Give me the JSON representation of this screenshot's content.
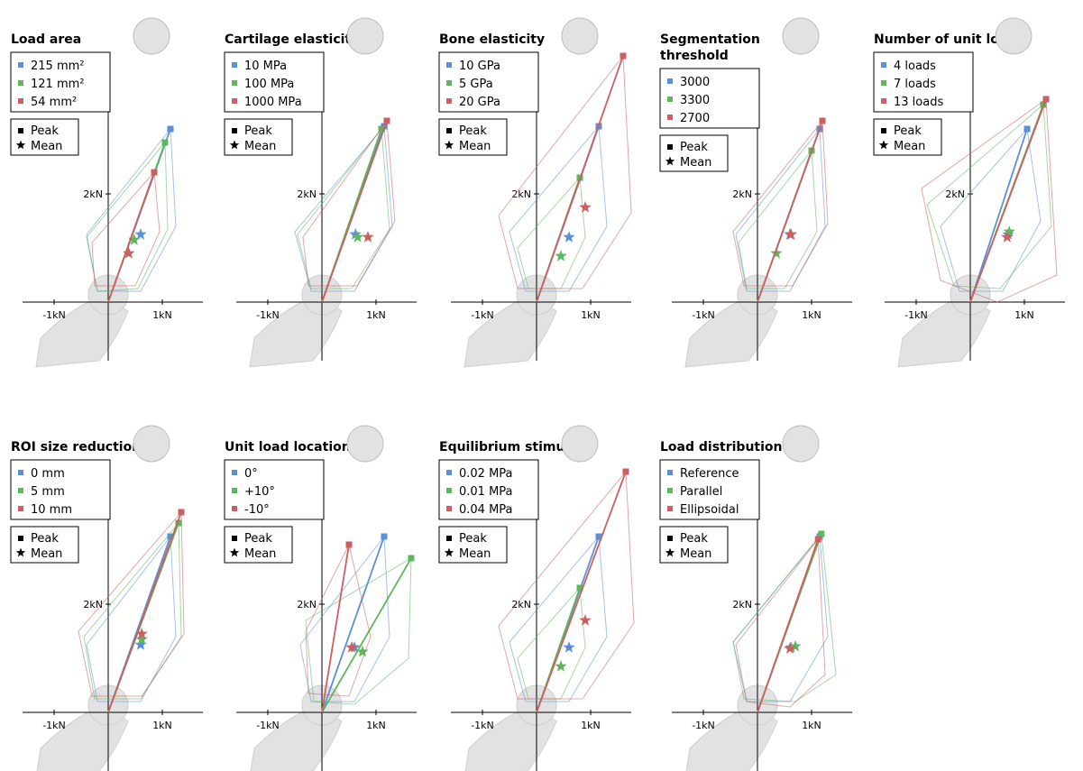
{
  "colors": {
    "blue": "#5b8fd9",
    "green": "#5cb85c",
    "red": "#cc5f5f",
    "bone": "#e2e2e2"
  },
  "tick_labels": {
    "x_neg": "-1kN",
    "x_pos": "1kN",
    "y": "2kN"
  },
  "marker_legend": {
    "peak": "Peak",
    "mean": "Mean"
  },
  "chart_data": [
    {
      "type": "scatter",
      "title": "Load area",
      "title_lines": [
        "Load area"
      ],
      "series": [
        {
          "name": "215 mm²",
          "color": "#5b8fd9",
          "peak": [
            1.15,
            3.2
          ],
          "mean": [
            0.6,
            1.25
          ],
          "envelope": [
            [
              1.15,
              3.2
            ],
            [
              1.25,
              1.4
            ],
            [
              0.6,
              0.2
            ],
            [
              -0.2,
              0.2
            ],
            [
              -0.4,
              1.25
            ]
          ]
        },
        {
          "name": "121 mm²",
          "color": "#5cb85c",
          "peak": [
            1.05,
            2.95
          ],
          "mean": [
            0.48,
            1.15
          ],
          "envelope": [
            [
              1.05,
              2.95
            ],
            [
              1.1,
              1.35
            ],
            [
              0.55,
              0.25
            ],
            [
              -0.2,
              0.2
            ],
            [
              -0.4,
              1.2
            ]
          ]
        },
        {
          "name": "54 mm²",
          "color": "#cc5f5f",
          "peak": [
            0.85,
            2.4
          ],
          "mean": [
            0.38,
            0.9
          ],
          "envelope": [
            [
              0.85,
              2.4
            ],
            [
              0.95,
              1.3
            ],
            [
              0.5,
              0.3
            ],
            [
              -0.25,
              0.3
            ],
            [
              -0.3,
              1.1
            ]
          ]
        }
      ]
    },
    {
      "type": "scatter",
      "title": "Cartilage elasticity",
      "title_lines": [
        "Cartilage elasticity"
      ],
      "series": [
        {
          "name": "10 MPa",
          "color": "#5b8fd9",
          "peak": [
            1.15,
            3.25
          ],
          "mean": [
            0.62,
            1.25
          ],
          "envelope": [
            [
              1.15,
              3.25
            ],
            [
              1.3,
              1.4
            ],
            [
              0.6,
              0.2
            ],
            [
              -0.2,
              0.2
            ],
            [
              -0.5,
              1.3
            ]
          ]
        },
        {
          "name": "100 MPa",
          "color": "#5cb85c",
          "peak": [
            1.1,
            3.2
          ],
          "mean": [
            0.66,
            1.2
          ],
          "envelope": [
            [
              1.1,
              3.2
            ],
            [
              1.25,
              1.35
            ],
            [
              0.55,
              0.25
            ],
            [
              -0.2,
              0.25
            ],
            [
              -0.45,
              1.25
            ]
          ]
        },
        {
          "name": "1000 MPa",
          "color": "#cc5f5f",
          "peak": [
            1.2,
            3.35
          ],
          "mean": [
            0.85,
            1.2
          ],
          "envelope": [
            [
              1.2,
              3.35
            ],
            [
              1.35,
              1.5
            ],
            [
              0.65,
              0.3
            ],
            [
              -0.25,
              0.3
            ],
            [
              -0.35,
              1.2
            ]
          ]
        }
      ]
    },
    {
      "type": "scatter",
      "title": "Bone elasticity",
      "title_lines": [
        "Bone elasticity"
      ],
      "series": [
        {
          "name": "10 GPa",
          "color": "#5b8fd9",
          "peak": [
            1.15,
            3.25
          ],
          "mean": [
            0.6,
            1.2
          ],
          "envelope": [
            [
              1.15,
              3.25
            ],
            [
              1.3,
              1.4
            ],
            [
              0.6,
              0.2
            ],
            [
              -0.2,
              0.2
            ],
            [
              -0.5,
              1.3
            ]
          ]
        },
        {
          "name": "5 GPa",
          "color": "#5cb85c",
          "peak": [
            0.8,
            2.3
          ],
          "mean": [
            0.45,
            0.85
          ],
          "envelope": [
            [
              0.8,
              2.3
            ],
            [
              0.9,
              1.2
            ],
            [
              0.45,
              0.25
            ],
            [
              -0.15,
              0.25
            ],
            [
              -0.35,
              1.0
            ]
          ]
        },
        {
          "name": "20 GPa",
          "color": "#cc5f5f",
          "peak": [
            1.6,
            4.55
          ],
          "mean": [
            0.9,
            1.75
          ],
          "envelope": [
            [
              1.6,
              4.55
            ],
            [
              1.75,
              1.65
            ],
            [
              0.85,
              0.25
            ],
            [
              -0.35,
              0.25
            ],
            [
              -0.7,
              1.6
            ]
          ]
        }
      ]
    },
    {
      "type": "scatter",
      "title": "Segmentation threshold",
      "title_lines": [
        "Segmentation",
        "threshold"
      ],
      "series": [
        {
          "name": "3000",
          "color": "#5b8fd9",
          "peak": [
            1.15,
            3.2
          ],
          "mean": [
            0.6,
            1.25
          ],
          "envelope": [
            [
              1.15,
              3.2
            ],
            [
              1.25,
              1.4
            ],
            [
              0.6,
              0.2
            ],
            [
              -0.2,
              0.2
            ],
            [
              -0.4,
              1.25
            ]
          ]
        },
        {
          "name": "3300",
          "color": "#5cb85c",
          "peak": [
            1.0,
            2.8
          ],
          "mean": [
            0.35,
            0.9
          ],
          "envelope": [
            [
              1.0,
              2.8
            ],
            [
              1.1,
              1.3
            ],
            [
              0.5,
              0.25
            ],
            [
              -0.2,
              0.25
            ],
            [
              -0.35,
              1.1
            ]
          ]
        },
        {
          "name": "2700",
          "color": "#cc5f5f",
          "peak": [
            1.2,
            3.35
          ],
          "mean": [
            0.62,
            1.25
          ],
          "envelope": [
            [
              1.2,
              3.35
            ],
            [
              1.3,
              1.45
            ],
            [
              0.65,
              0.3
            ],
            [
              -0.25,
              0.3
            ],
            [
              -0.45,
              1.3
            ]
          ]
        }
      ]
    },
    {
      "type": "scatter",
      "title": "Number of unit loads",
      "title_lines": [
        "Number of unit loads"
      ],
      "series": [
        {
          "name": "4 loads",
          "color": "#5b8fd9",
          "peak": [
            1.05,
            3.2
          ],
          "mean": [
            0.7,
            1.25
          ],
          "envelope": [
            [
              1.05,
              3.2
            ],
            [
              1.3,
              1.5
            ],
            [
              0.6,
              0.2
            ],
            [
              -0.2,
              0.2
            ],
            [
              -0.55,
              1.4
            ]
          ]
        },
        {
          "name": "7 loads",
          "color": "#5cb85c",
          "peak": [
            1.35,
            3.65
          ],
          "mean": [
            0.72,
            1.3
          ],
          "envelope": [
            [
              1.35,
              3.65
            ],
            [
              1.5,
              1.4
            ],
            [
              0.55,
              0.25
            ],
            [
              -0.3,
              0.3
            ],
            [
              -0.8,
              1.8
            ]
          ]
        },
        {
          "name": "13 loads",
          "color": "#cc5f5f",
          "peak": [
            1.4,
            3.75
          ],
          "mean": [
            0.68,
            1.2
          ],
          "envelope": [
            [
              1.4,
              3.75
            ],
            [
              1.6,
              0.5
            ],
            [
              0.5,
              0.0
            ],
            [
              -0.55,
              0.4
            ],
            [
              -0.9,
              2.1
            ]
          ]
        }
      ]
    },
    {
      "type": "scatter",
      "title": "ROI size reduction",
      "title_lines": [
        "ROI size reduction"
      ],
      "series": [
        {
          "name": "0 mm",
          "color": "#5b8fd9",
          "peak": [
            1.15,
            3.25
          ],
          "mean": [
            0.6,
            1.25
          ],
          "envelope": [
            [
              1.15,
              3.25
            ],
            [
              1.25,
              1.4
            ],
            [
              0.6,
              0.2
            ],
            [
              -0.2,
              0.2
            ],
            [
              -0.4,
              1.25
            ]
          ]
        },
        {
          "name": "5 mm",
          "color": "#5cb85c",
          "peak": [
            1.3,
            3.5
          ],
          "mean": [
            0.62,
            1.35
          ],
          "envelope": [
            [
              1.3,
              3.5
            ],
            [
              1.35,
              1.4
            ],
            [
              0.6,
              0.25
            ],
            [
              -0.25,
              0.25
            ],
            [
              -0.45,
              1.4
            ]
          ]
        },
        {
          "name": "10 mm",
          "color": "#cc5f5f",
          "peak": [
            1.35,
            3.7
          ],
          "mean": [
            0.62,
            1.45
          ],
          "envelope": [
            [
              1.35,
              3.7
            ],
            [
              1.4,
              1.45
            ],
            [
              0.62,
              0.3
            ],
            [
              -0.3,
              0.3
            ],
            [
              -0.55,
              1.5
            ]
          ]
        }
      ]
    },
    {
      "type": "scatter",
      "title": "Unit load location",
      "title_lines": [
        "Unit load location"
      ],
      "series": [
        {
          "name": "0°",
          "color": "#5b8fd9",
          "peak": [
            1.15,
            3.25
          ],
          "mean": [
            0.6,
            1.2
          ],
          "envelope": [
            [
              1.15,
              3.25
            ],
            [
              1.25,
              1.4
            ],
            [
              0.6,
              0.2
            ],
            [
              -0.2,
              0.2
            ],
            [
              -0.4,
              1.25
            ]
          ]
        },
        {
          "name": "+10°",
          "color": "#5cb85c",
          "peak": [
            1.65,
            2.85
          ],
          "mean": [
            0.75,
            1.12
          ],
          "envelope": [
            [
              1.65,
              2.85
            ],
            [
              1.6,
              1.0
            ],
            [
              0.6,
              0.15
            ],
            [
              -0.15,
              0.2
            ],
            [
              -0.3,
              1.7
            ]
          ]
        },
        {
          "name": "-10°",
          "color": "#cc5f5f",
          "peak": [
            0.5,
            3.1
          ],
          "mean": [
            0.55,
            1.2
          ],
          "envelope": [
            [
              0.5,
              3.1
            ],
            [
              0.9,
              1.4
            ],
            [
              0.5,
              0.3
            ],
            [
              -0.25,
              0.35
            ],
            [
              -0.3,
              1.5
            ]
          ]
        }
      ]
    },
    {
      "type": "scatter",
      "title": "Equilibrium stimulus",
      "title_lines": [
        "Equilibrium stimulus"
      ],
      "series": [
        {
          "name": "0.02 MPa",
          "color": "#5b8fd9",
          "peak": [
            1.15,
            3.25
          ],
          "mean": [
            0.6,
            1.2
          ],
          "envelope": [
            [
              1.15,
              3.25
            ],
            [
              1.3,
              1.4
            ],
            [
              0.6,
              0.2
            ],
            [
              -0.2,
              0.2
            ],
            [
              -0.5,
              1.3
            ]
          ]
        },
        {
          "name": "0.01 MPa",
          "color": "#5cb85c",
          "peak": [
            0.8,
            2.3
          ],
          "mean": [
            0.45,
            0.85
          ],
          "envelope": [
            [
              0.8,
              2.3
            ],
            [
              0.9,
              1.2
            ],
            [
              0.45,
              0.25
            ],
            [
              -0.15,
              0.25
            ],
            [
              -0.35,
              1.0
            ]
          ]
        },
        {
          "name": "0.04 MPa",
          "color": "#cc5f5f",
          "peak": [
            1.65,
            4.45
          ],
          "mean": [
            0.9,
            1.7
          ],
          "envelope": [
            [
              1.65,
              4.45
            ],
            [
              1.8,
              1.65
            ],
            [
              0.85,
              0.25
            ],
            [
              -0.35,
              0.25
            ],
            [
              -0.7,
              1.6
            ]
          ]
        }
      ]
    },
    {
      "type": "scatter",
      "title": "Load distribution",
      "title_lines": [
        "Load distribution"
      ],
      "series": [
        {
          "name": "Reference",
          "color": "#5b8fd9",
          "peak": [
            1.15,
            3.25
          ],
          "mean": [
            0.62,
            1.2
          ],
          "envelope": [
            [
              1.15,
              3.25
            ],
            [
              1.3,
              1.4
            ],
            [
              0.6,
              0.2
            ],
            [
              -0.2,
              0.2
            ],
            [
              -0.45,
              1.3
            ]
          ]
        },
        {
          "name": "Parallel",
          "color": "#5cb85c",
          "peak": [
            1.18,
            3.3
          ],
          "mean": [
            0.7,
            1.22
          ],
          "envelope": [
            [
              1.18,
              3.3
            ],
            [
              1.45,
              0.7
            ],
            [
              0.7,
              0.2
            ],
            [
              -0.25,
              0.25
            ],
            [
              -0.45,
              1.3
            ]
          ]
        },
        {
          "name": "Ellipsoidal",
          "color": "#cc5f5f",
          "peak": [
            1.12,
            3.2
          ],
          "mean": [
            0.6,
            1.18
          ],
          "envelope": [
            [
              1.12,
              3.2
            ],
            [
              1.25,
              0.7
            ],
            [
              0.6,
              0.1
            ],
            [
              -0.2,
              0.2
            ],
            [
              -0.4,
              1.25
            ]
          ]
        }
      ]
    }
  ]
}
